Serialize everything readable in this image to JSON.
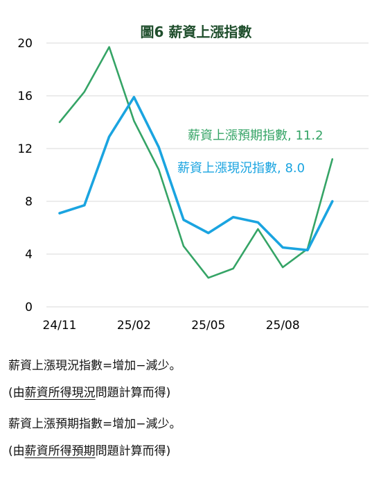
{
  "chart_data": {
    "type": "line",
    "title": "圖6  薪資上漲指數",
    "x": [
      "24/11",
      "24/12",
      "25/01",
      "25/02",
      "25/03",
      "25/04",
      "25/05",
      "25/06",
      "25/07",
      "25/08",
      "25/09",
      "25/10"
    ],
    "x_tick_labels": [
      "24/11",
      "25/02",
      "25/05",
      "25/08"
    ],
    "ylim": [
      0,
      20
    ],
    "y_ticks": [
      0,
      4,
      8,
      12,
      16,
      20
    ],
    "grid": "horizontal",
    "series": [
      {
        "name": "薪資上漲預期指數",
        "label": "薪資上漲預期指數, 11.2",
        "color": "#35a466",
        "values": [
          14.0,
          16.3,
          19.7,
          14.1,
          10.4,
          4.6,
          2.2,
          2.9,
          5.9,
          3.0,
          4.4,
          11.2
        ]
      },
      {
        "name": "薪資上漲現況指數",
        "label": "薪資上漲現況指數, 8.0",
        "color": "#1aa4e0",
        "values": [
          7.1,
          7.7,
          12.9,
          15.9,
          12.1,
          6.6,
          5.6,
          6.8,
          6.4,
          4.5,
          4.3,
          8.0
        ]
      }
    ]
  },
  "notes": {
    "line1": "薪資上漲現況指數=增加−減少。",
    "line2_prefix": "(由",
    "line2_underlined": "薪資所得現況",
    "line2_suffix": "問題計算而得)",
    "line3": "薪資上漲預期指數=增加−減少。",
    "line4_prefix": "(由",
    "line4_underlined": "薪資所得預期",
    "line4_suffix": "問題計算而得)"
  }
}
